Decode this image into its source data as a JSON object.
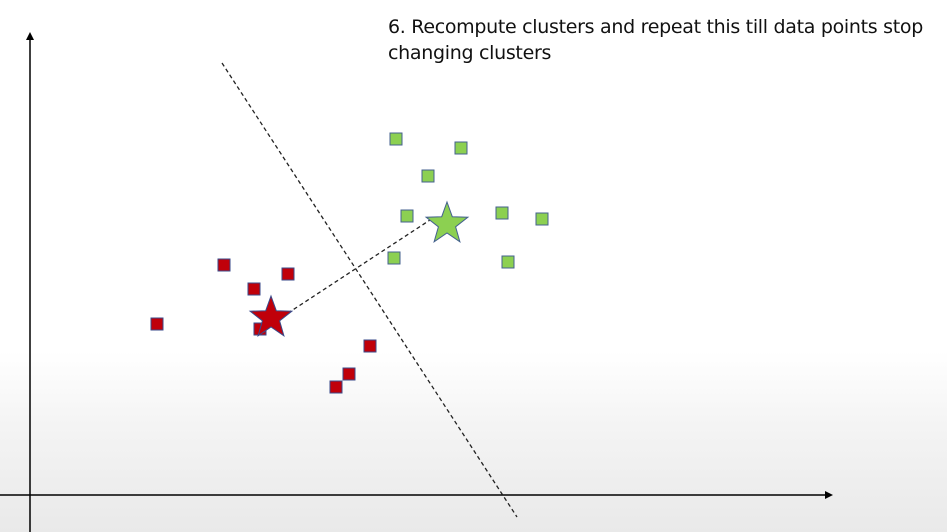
{
  "slide": {
    "caption": "6. Recompute clusters and repeat this till data points stop changing clusters"
  },
  "colors": {
    "red_cluster_fill": "#c0000a",
    "red_cluster_stroke": "#3a4a8a",
    "green_cluster_fill": "#8cd051",
    "green_cluster_stroke": "#44618f",
    "axis": "#000000",
    "dashed_line": "#222222"
  },
  "clusters": [
    {
      "name": "red-cluster",
      "centroid": [
        271,
        318
      ],
      "points": [
        [
          224,
          265
        ],
        [
          288,
          274
        ],
        [
          254,
          289
        ],
        [
          157,
          324
        ],
        [
          260,
          329
        ],
        [
          370,
          346
        ],
        [
          349,
          374
        ],
        [
          336,
          387
        ]
      ]
    },
    {
      "name": "green-cluster",
      "centroid": [
        447,
        224
      ],
      "points": [
        [
          396,
          139
        ],
        [
          461,
          148
        ],
        [
          428,
          176
        ],
        [
          407,
          216
        ],
        [
          502,
          213
        ],
        [
          542,
          219
        ],
        [
          394,
          258
        ],
        [
          508,
          262
        ]
      ]
    }
  ],
  "boundary_line": [
    [
      222,
      63
    ],
    [
      517,
      517
    ]
  ],
  "centroid_link": [
    [
      282,
      317
    ],
    [
      430,
      220
    ]
  ]
}
